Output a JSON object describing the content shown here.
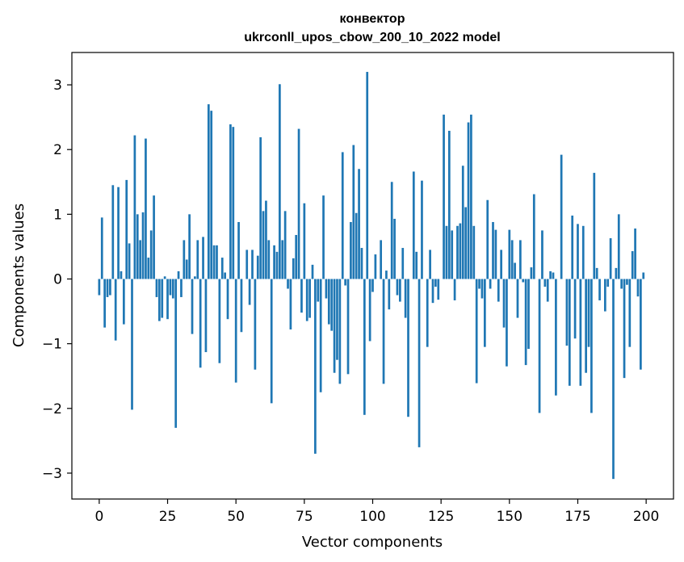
{
  "chart_data": {
    "type": "bar",
    "title_line1": "конвектор",
    "title_line2": "ukrconll_upos_cbow_200_10_2022 model",
    "xlabel": "Vector components",
    "ylabel": "Components values",
    "xlim": [
      -10,
      210
    ],
    "ylim": [
      -3.4,
      3.5
    ],
    "xticks": [
      0,
      25,
      50,
      75,
      100,
      125,
      150,
      175,
      200
    ],
    "xtick_labels": [
      "0",
      "25",
      "50",
      "75",
      "100",
      "125",
      "150",
      "175",
      "200"
    ],
    "yticks": [
      3,
      2,
      1,
      0,
      -1,
      -2,
      -3
    ],
    "ytick_labels": [
      "3",
      "2",
      "1",
      "0",
      "−1",
      "−2",
      "−3"
    ],
    "grid": false,
    "bar_color": "#1f77b4",
    "x": [
      0,
      1,
      2,
      3,
      4,
      5,
      6,
      7,
      8,
      9,
      10,
      11,
      12,
      13,
      14,
      15,
      16,
      17,
      18,
      19,
      20,
      21,
      22,
      23,
      24,
      25,
      26,
      27,
      28,
      29,
      30,
      31,
      32,
      33,
      34,
      35,
      36,
      37,
      38,
      39,
      40,
      41,
      42,
      43,
      44,
      45,
      46,
      47,
      48,
      49,
      50,
      51,
      52,
      53,
      54,
      55,
      56,
      57,
      58,
      59,
      60,
      61,
      62,
      63,
      64,
      65,
      66,
      67,
      68,
      69,
      70,
      71,
      72,
      73,
      74,
      75,
      76,
      77,
      78,
      79,
      80,
      81,
      82,
      83,
      84,
      85,
      86,
      87,
      88,
      89,
      90,
      91,
      92,
      93,
      94,
      95,
      96,
      97,
      98,
      99,
      100,
      101,
      102,
      103,
      104,
      105,
      106,
      107,
      108,
      109,
      110,
      111,
      112,
      113,
      114,
      115,
      116,
      117,
      118,
      119,
      120,
      121,
      122,
      123,
      124,
      125,
      126,
      127,
      128,
      129,
      130,
      131,
      132,
      133,
      134,
      135,
      136,
      137,
      138,
      139,
      140,
      141,
      142,
      143,
      144,
      145,
      146,
      147,
      148,
      149,
      150,
      151,
      152,
      153,
      154,
      155,
      156,
      157,
      158,
      159,
      160,
      161,
      162,
      163,
      164,
      165,
      166,
      167,
      168,
      169,
      170,
      171,
      172,
      173,
      174,
      175,
      176,
      177,
      178,
      179,
      180,
      181,
      182,
      183,
      184,
      185,
      186,
      187,
      188,
      189,
      190,
      191,
      192,
      193,
      194,
      195,
      196,
      197,
      198,
      199
    ],
    "values": [
      -0.25,
      0.95,
      -0.75,
      -0.28,
      -0.25,
      1.45,
      -0.95,
      1.42,
      0.12,
      -0.7,
      1.53,
      0.55,
      -2.02,
      2.22,
      1.0,
      0.6,
      1.03,
      2.17,
      0.33,
      0.75,
      1.29,
      -0.28,
      -0.65,
      -0.6,
      0.04,
      -0.62,
      -0.25,
      -0.3,
      -2.3,
      0.12,
      -0.28,
      0.6,
      0.3,
      1.0,
      -0.85,
      0.04,
      0.6,
      -1.37,
      0.65,
      -1.13,
      2.7,
      2.6,
      0.52,
      0.52,
      -1.3,
      0.33,
      0.1,
      -0.62,
      2.39,
      2.35,
      -1.6,
      0.88,
      -0.82,
      0.0,
      0.45,
      -0.4,
      0.45,
      -1.4,
      0.36,
      2.19,
      1.05,
      1.21,
      0.6,
      -1.92,
      0.52,
      0.42,
      3.01,
      0.6,
      1.05,
      -0.15,
      -0.78,
      0.32,
      0.68,
      2.32,
      -0.52,
      1.17,
      -0.65,
      -0.6,
      0.22,
      -2.7,
      -0.35,
      -1.75,
      1.29,
      -0.3,
      -0.7,
      -0.8,
      -1.45,
      -1.25,
      -1.62,
      1.96,
      -0.1,
      -1.47,
      0.88,
      2.07,
      1.02,
      1.7,
      0.48,
      -2.1,
      3.2,
      -0.96,
      -0.2,
      0.38,
      0.0,
      0.6,
      -1.62,
      0.13,
      -0.47,
      1.5,
      0.93,
      -0.25,
      -0.35,
      0.48,
      -0.6,
      -2.13,
      0.0,
      1.66,
      0.42,
      -2.6,
      1.52,
      0.0,
      -1.05,
      0.45,
      -0.37,
      -0.12,
      -0.32,
      0.0,
      2.54,
      0.82,
      2.29,
      0.75,
      -0.33,
      0.82,
      0.86,
      1.75,
      1.11,
      2.42,
      2.54,
      0.82,
      -1.61,
      -0.15,
      -0.3,
      -1.05,
      1.22,
      -0.15,
      0.88,
      0.76,
      -0.35,
      0.45,
      -0.75,
      -1.35,
      0.76,
      0.6,
      0.25,
      -0.6,
      0.6,
      -0.05,
      -1.33,
      -1.08,
      0.18,
      1.31,
      0.0,
      -2.07,
      0.75,
      -0.12,
      -0.35,
      0.12,
      0.1,
      -1.8,
      0.0,
      1.92,
      0.0,
      -1.03,
      -1.65,
      0.98,
      -0.92,
      0.85,
      -1.65,
      0.82,
      -1.45,
      -1.05,
      -2.07,
      1.64,
      0.17,
      -0.33,
      0.0,
      -0.5,
      -0.12,
      0.63,
      -3.09,
      0.17,
      1.0,
      -0.15,
      -1.53,
      -0.09,
      -1.05,
      0.43,
      0.78,
      -0.27,
      -1.4,
      0.1
    ]
  }
}
